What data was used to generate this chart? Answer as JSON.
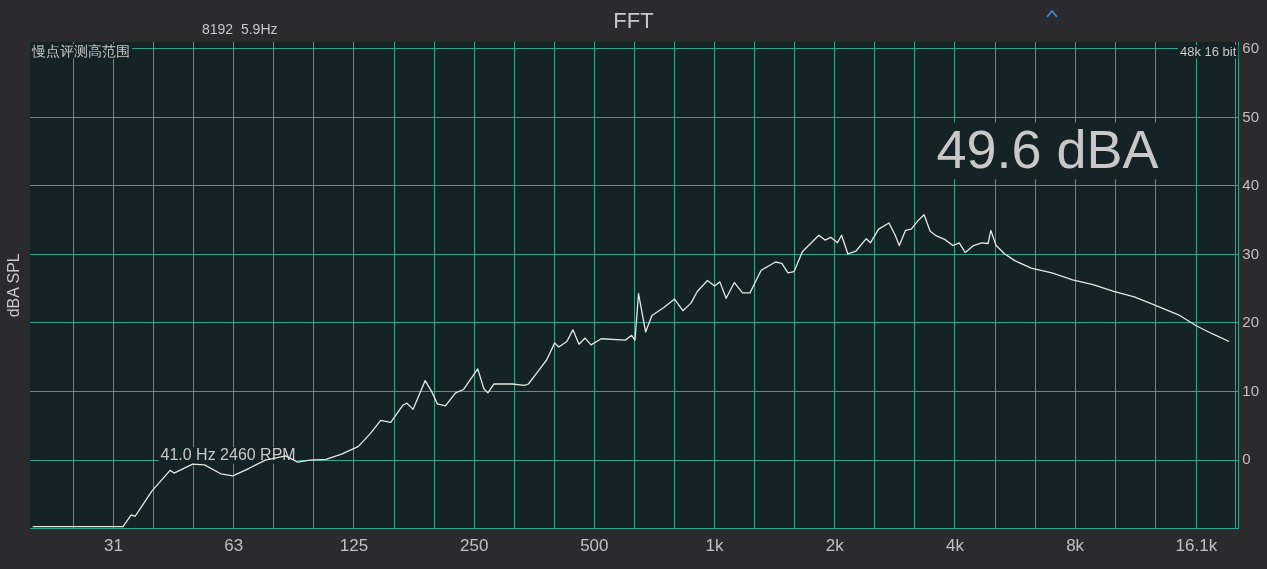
{
  "chart_data": {
    "type": "line",
    "title": "FFT",
    "subtitle": "8192  5.9Hz",
    "ylabel": "dBA SPL",
    "annotations": [
      "慢点评测高范围",
      "48k 16 bit",
      "49.6 dBA",
      "41.0 Hz 2460 RPM"
    ],
    "log": "x",
    "grid": true,
    "legend": false,
    "marker": "none",
    "line_style": "solid",
    "xlim": [
      19.3,
      20500
    ],
    "ylim": [
      -10,
      61
    ],
    "xticks": [
      {
        "value": 24.8,
        "label": null
      },
      {
        "value": 31.25,
        "label": "31"
      },
      {
        "value": 39.37,
        "label": null
      },
      {
        "value": 49.61,
        "label": null
      },
      {
        "value": 62.5,
        "label": "63"
      },
      {
        "value": 78.75,
        "label": null
      },
      {
        "value": 99.21,
        "label": null
      },
      125,
      {
        "value": 157.5,
        "label": null
      },
      {
        "value": 198.4,
        "label": null
      },
      250,
      {
        "value": 315,
        "label": null
      },
      {
        "value": 396.9,
        "label": null
      },
      500,
      {
        "value": 630,
        "label": null
      },
      {
        "value": 793.7,
        "label": null
      },
      {
        "value": 1000,
        "label": "1k"
      },
      {
        "value": 1260,
        "label": null
      },
      {
        "value": 1587,
        "label": null
      },
      {
        "value": 2000,
        "label": "2k"
      },
      {
        "value": 2520,
        "label": null
      },
      {
        "value": 3175,
        "label": null
      },
      {
        "value": 4000,
        "label": "4k"
      },
      {
        "value": 5040,
        "label": null
      },
      {
        "value": 6350,
        "label": null
      },
      {
        "value": 8000,
        "label": "8k"
      },
      {
        "value": 10079,
        "label": null
      },
      {
        "value": 12699,
        "label": null
      },
      {
        "value": 16100,
        "label": "16.1k"
      },
      {
        "value": 20159,
        "label": null
      }
    ],
    "yticks": [
      0,
      10,
      20,
      30,
      40,
      50,
      60
    ],
    "series": [
      {
        "color": "#e6e6e6",
        "x": [
          19.6,
          33,
          34.6,
          35.4,
          39,
          43.3,
          44.3,
          49.3,
          52.8,
          58,
          62.2,
          68.3,
          75,
          84.3,
          90.4,
          96.9,
          106.4,
          116.8,
          128.3,
          137.5,
          145.8,
          154.5,
          165.8,
          169.7,
          175.8,
          188.5,
          195.2,
          202.2,
          211.8,
          224.6,
          235.2,
          255.2,
          264.4,
          270.6,
          280.3,
          311.3,
          334.1,
          341.8,
          366.5,
          379.6,
          397.8,
          407.2,
          426.6,
          441.9,
          457.5,
          474,
          490.6,
          520.3,
          598,
          620,
          632,
          645,
          672,
          697,
          748,
          794,
          833,
          873,
          905,
          960,
          1000,
          1031,
          1069,
          1121,
          1175,
          1227,
          1293,
          1309,
          1422,
          1474,
          1527,
          1582,
          1659,
          1825,
          1891,
          1954,
          2031,
          2080,
          2156,
          2261,
          2399,
          2457,
          2576,
          2734,
          2834,
          2902,
          3007,
          3108,
          3229,
          3347,
          3468,
          3594,
          3769,
          3953,
          4100,
          4245,
          4452,
          4669,
          4845,
          4919,
          5074,
          5322,
          5646,
          6210,
          6995,
          7880,
          8870,
          9990,
          11250,
          12670,
          14620,
          16080,
          17680,
          19440
        ],
        "values": [
          -9.7,
          -9.7,
          -8.0,
          -8.2,
          -4.5,
          -1.5,
          -1.9,
          -0.6,
          -0.7,
          -2.0,
          -2.3,
          -1.2,
          0,
          0.6,
          -0.3,
          0,
          0.1,
          0.9,
          2.0,
          3.9,
          5.8,
          5.5,
          8.0,
          8.3,
          7.4,
          11.6,
          10.1,
          8.2,
          7.9,
          9.8,
          10.3,
          13.3,
          10.4,
          9.8,
          11.1,
          11.1,
          10.9,
          11.1,
          13.4,
          14.6,
          17.1,
          16.5,
          17.3,
          19.0,
          16.9,
          17.8,
          16.8,
          17.7,
          17.5,
          18.2,
          17.5,
          24.3,
          18.7,
          21.1,
          22.3,
          23.5,
          21.8,
          22.9,
          24.6,
          26.2,
          25.4,
          26.0,
          23.6,
          25.9,
          24.4,
          24.4,
          27.1,
          27.7,
          28.9,
          28.7,
          27.3,
          27.5,
          30.4,
          32.8,
          32.1,
          32.5,
          31.7,
          32.8,
          30.1,
          30.5,
          32.3,
          31.7,
          33.7,
          34.6,
          32.8,
          31.3,
          33.5,
          33.7,
          34.9,
          35.8,
          33.4,
          32.7,
          32.2,
          31.3,
          31.7,
          30.3,
          31.3,
          31.7,
          31.6,
          33.5,
          31.3,
          30.1,
          29.1,
          28.0,
          27.3,
          26.3,
          25.6,
          24.6,
          23.8,
          22.6,
          21.1,
          19.6,
          18.4,
          17.3
        ]
      }
    ]
  }
}
